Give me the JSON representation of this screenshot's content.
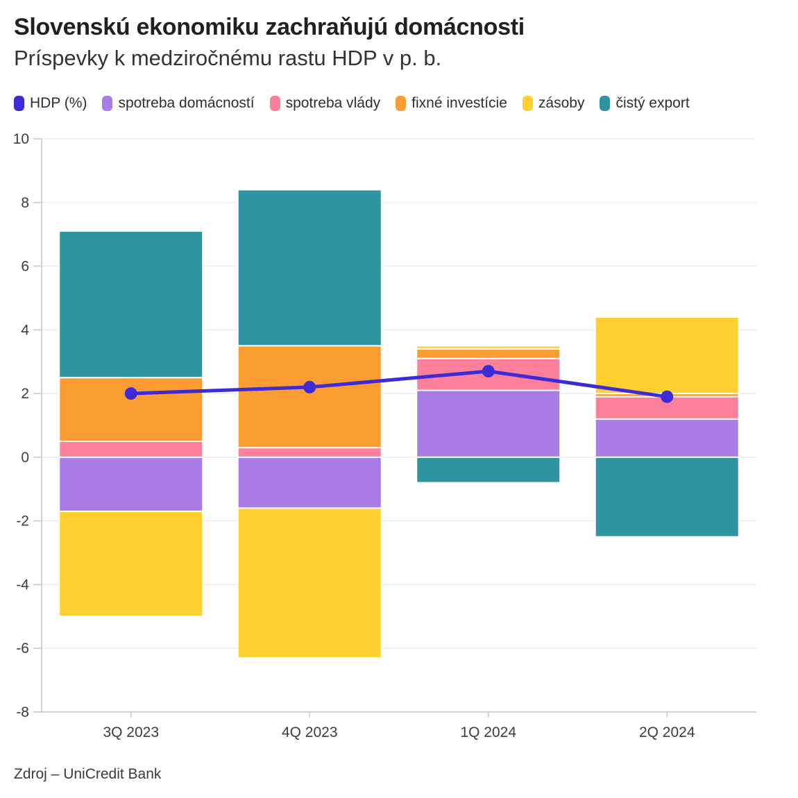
{
  "colors": {
    "hdp_line": "#3D2BD5",
    "household": "#A97CE8",
    "government": "#FC7F9B",
    "fixed_investment": "#FB9D32",
    "inventories": "#FFD02F",
    "net_export": "#2E95A0",
    "grid": "#ECECEC",
    "axis": "#C9C9C9",
    "tick_text": "#3C3C3C"
  },
  "chart_data": {
    "type": "bar",
    "variant": "stacked-bars-with-line",
    "title": "Slovenskú ekonomiku zachraňujú domácnosti",
    "subtitle": "Príspevky k medziročnému rastu HDP v p. b.",
    "source": "Zdroj – UniCredit Bank",
    "categories": [
      "3Q 2023",
      "4Q 2023",
      "1Q 2024",
      "2Q 2024"
    ],
    "series": [
      {
        "name": "spotreba domácností",
        "color_key": "household",
        "values": [
          -1.7,
          -1.6,
          2.1,
          1.2
        ]
      },
      {
        "name": "spotreba vlády",
        "color_key": "government",
        "values": [
          0.5,
          0.3,
          1.0,
          0.7
        ]
      },
      {
        "name": "fixné investície",
        "color_key": "fixed_investment",
        "values": [
          2.0,
          3.2,
          0.3,
          0.1
        ]
      },
      {
        "name": "zásoby",
        "color_key": "inventories",
        "values": [
          -3.3,
          -4.7,
          0.1,
          2.4
        ]
      },
      {
        "name": "čistý export",
        "color_key": "net_export",
        "values": [
          4.6,
          4.9,
          -0.8,
          -2.5
        ]
      }
    ],
    "line_series": {
      "name": "HDP (%)",
      "color_key": "hdp_line",
      "values": [
        2.0,
        2.2,
        2.7,
        1.9
      ]
    },
    "legend": [
      {
        "label": "HDP (%)",
        "color_key": "hdp_line"
      },
      {
        "label": "spotreba domácností",
        "color_key": "household"
      },
      {
        "label": "spotreba vlády",
        "color_key": "government"
      },
      {
        "label": "fixné investície",
        "color_key": "fixed_investment"
      },
      {
        "label": "zásoby",
        "color_key": "inventories"
      },
      {
        "label": "čistý export",
        "color_key": "net_export"
      }
    ],
    "ylim": [
      -8,
      10
    ],
    "ytick_step": 2,
    "grid": true,
    "legend_position": "top-left"
  }
}
